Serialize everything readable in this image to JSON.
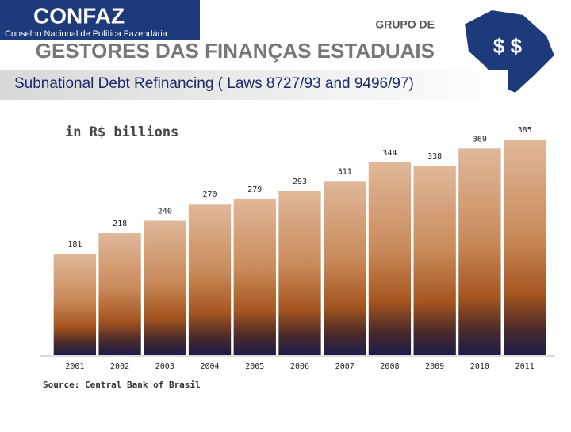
{
  "header": {
    "logo": "CONFAZ",
    "logo_subtitle": "Conselho Nacional de Política Fazendária",
    "group": "GRUPO DE",
    "group_name": "GESTORES DAS FINANÇAS ESTADUAIS"
  },
  "chart_data": {
    "type": "bar",
    "title": "Subnational Debt Refinancing ( Laws 8727/93 and 9496/97)",
    "subtitle": "in R$ billions",
    "categories": [
      "2001",
      "2002",
      "2003",
      "2004",
      "2005",
      "2006",
      "2007",
      "2008",
      "2009",
      "2010",
      "2011"
    ],
    "values": [
      181,
      218,
      240,
      270,
      279,
      293,
      311,
      344,
      338,
      369,
      385
    ],
    "source": "Source: Central Bank of Brasil"
  }
}
